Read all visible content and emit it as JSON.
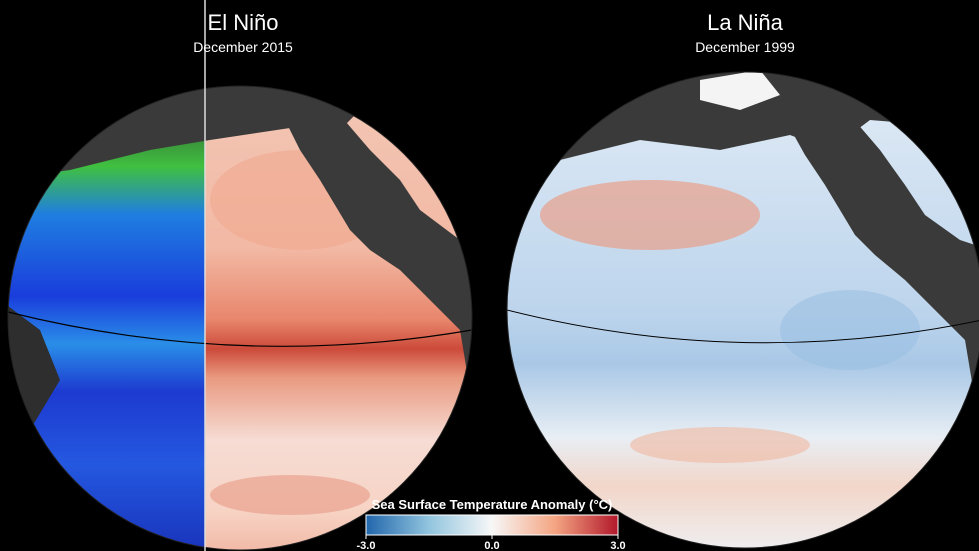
{
  "panels": [
    {
      "title": "El Niño",
      "subtitle": "December 2015"
    },
    {
      "title": "La Niña",
      "subtitle": "December 1999"
    }
  ],
  "colorbar": {
    "title": "Sea Surface Temperature Anomaly (°C)",
    "range": [
      -3,
      3
    ],
    "ticks": [
      {
        "value": -3,
        "label": "-3.0"
      },
      {
        "value": 0,
        "label": "0.0"
      },
      {
        "value": 3,
        "label": "3.0"
      }
    ]
  }
}
